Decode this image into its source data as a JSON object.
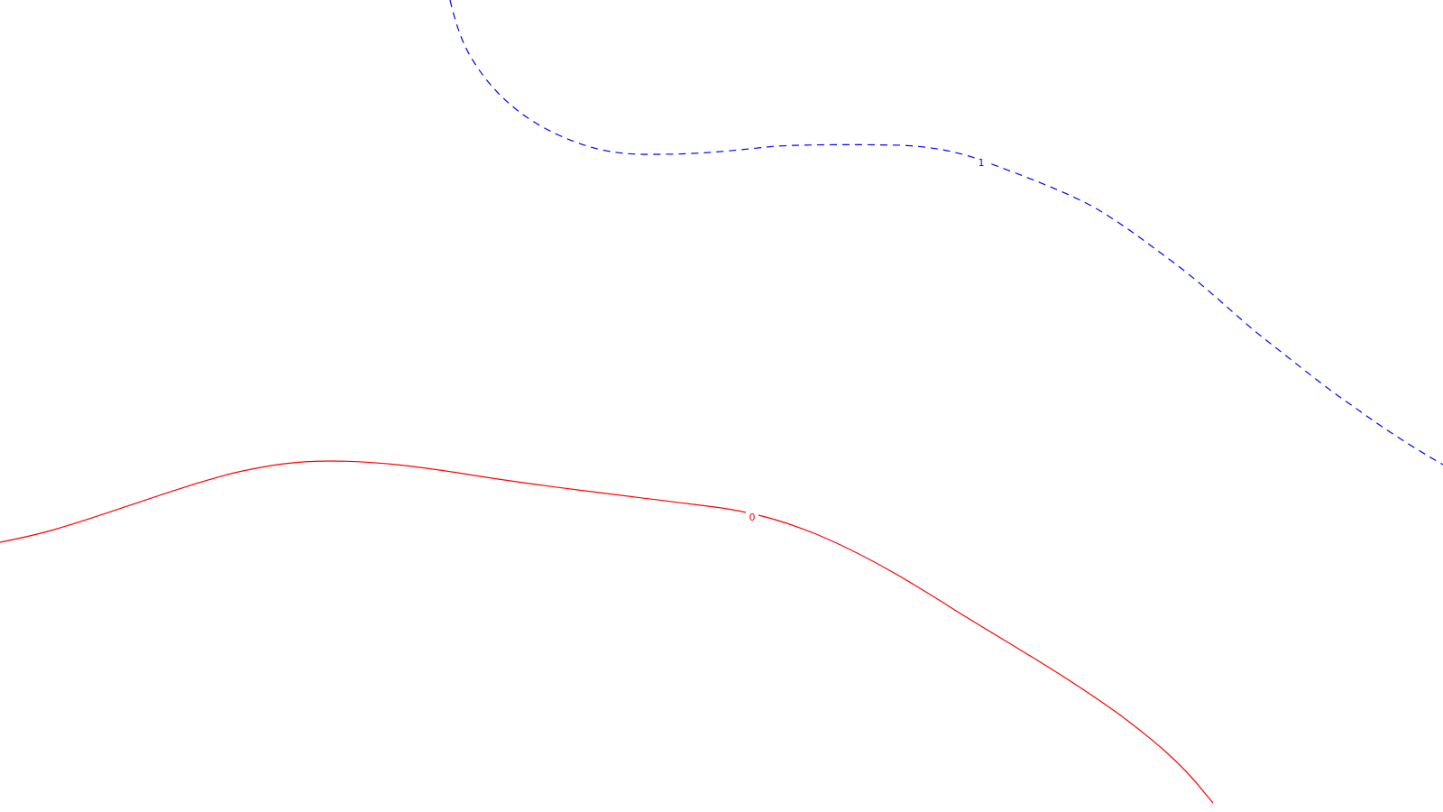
{
  "contours": [
    {
      "label": "0",
      "color": "#ff0000",
      "line_style": "solid"
    },
    {
      "label": "1",
      "color": "#0000ff",
      "line_style": "dashed"
    }
  ]
}
